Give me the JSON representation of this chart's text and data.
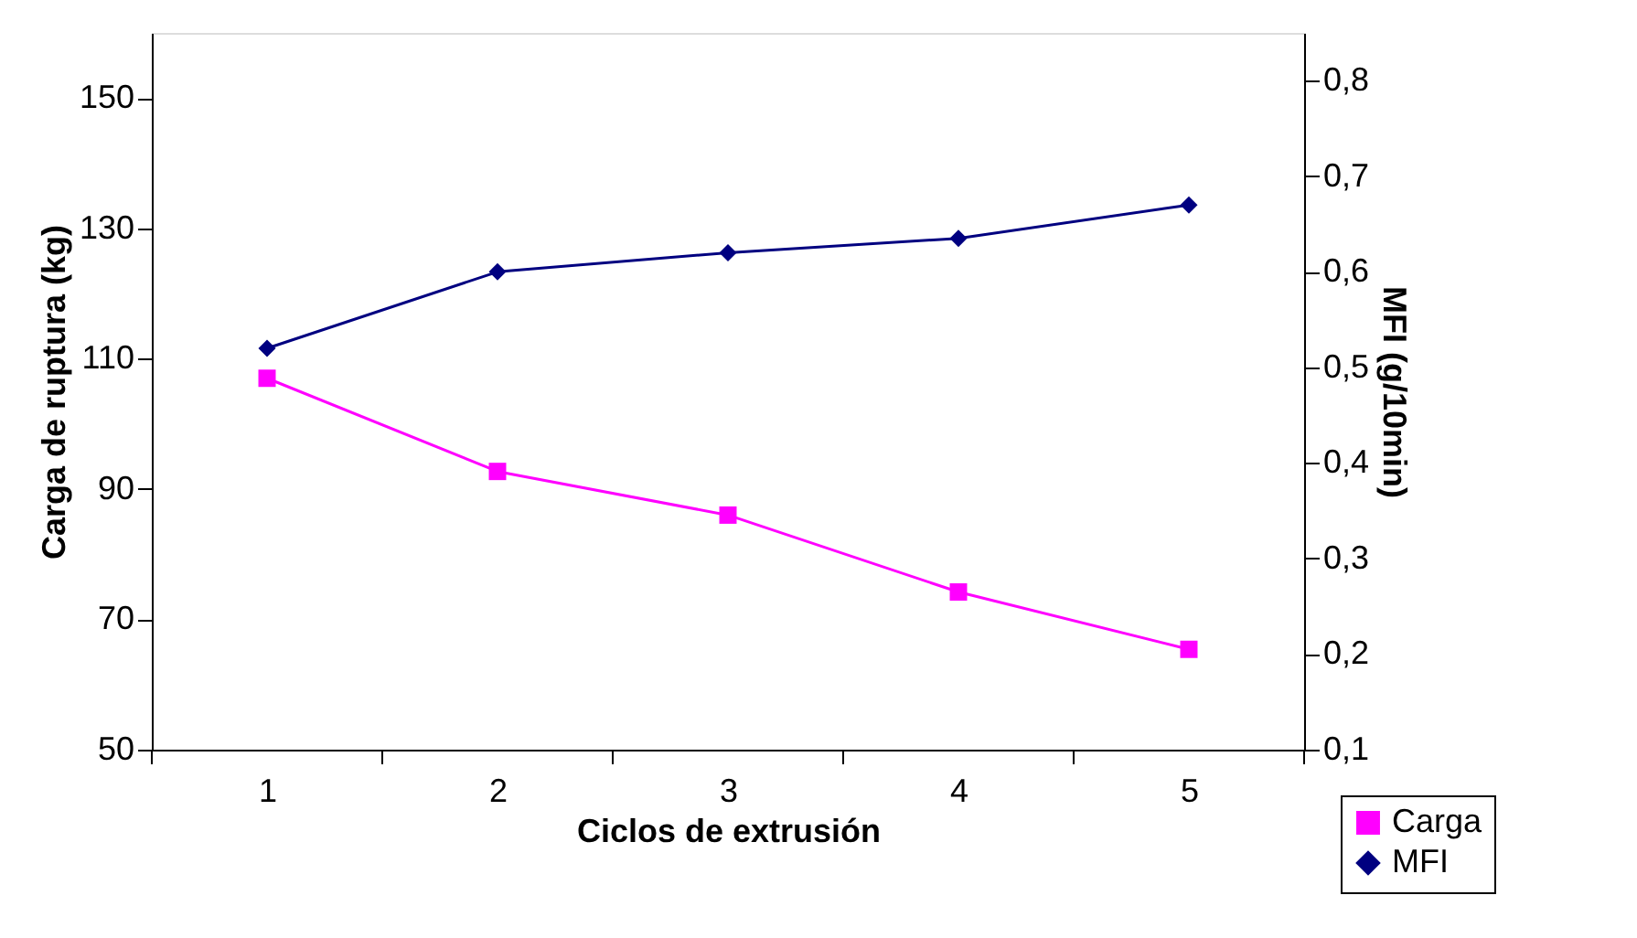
{
  "chart_data": {
    "type": "line",
    "xlabel": "Ciclos de extrusión",
    "ylabel": "Carga de ruptura (kg)",
    "y2label": "MFI (g/10min)",
    "categories": [
      "1",
      "2",
      "3",
      "4",
      "5"
    ],
    "series": [
      {
        "name": "Carga",
        "color": "#ff00ff",
        "marker": "square",
        "values": [
          107,
          92.7,
          86,
          74.2,
          65.4
        ]
      },
      {
        "name": "MFI",
        "color": "#000080",
        "marker": "diamond",
        "axis": "y2",
        "values": [
          0.52,
          0.6,
          0.62,
          0.635,
          0.67
        ]
      }
    ],
    "ylim": [
      50,
      160
    ],
    "yticks": [
      50,
      70,
      90,
      110,
      130,
      150
    ],
    "y2lim": [
      0.1,
      0.85
    ],
    "y2ticks": [
      {
        "value": 0.1,
        "label": "0,1"
      },
      {
        "value": 0.2,
        "label": "0,2"
      },
      {
        "value": 0.3,
        "label": "0,3"
      },
      {
        "value": 0.4,
        "label": "0,4"
      },
      {
        "value": 0.5,
        "label": "0,5"
      },
      {
        "value": 0.6,
        "label": "0,6"
      },
      {
        "value": 0.7,
        "label": "0,7"
      },
      {
        "value": 0.8,
        "label": "0,8"
      }
    ],
    "grid": false,
    "legend": "bottom right",
    "line_style": "solid"
  }
}
